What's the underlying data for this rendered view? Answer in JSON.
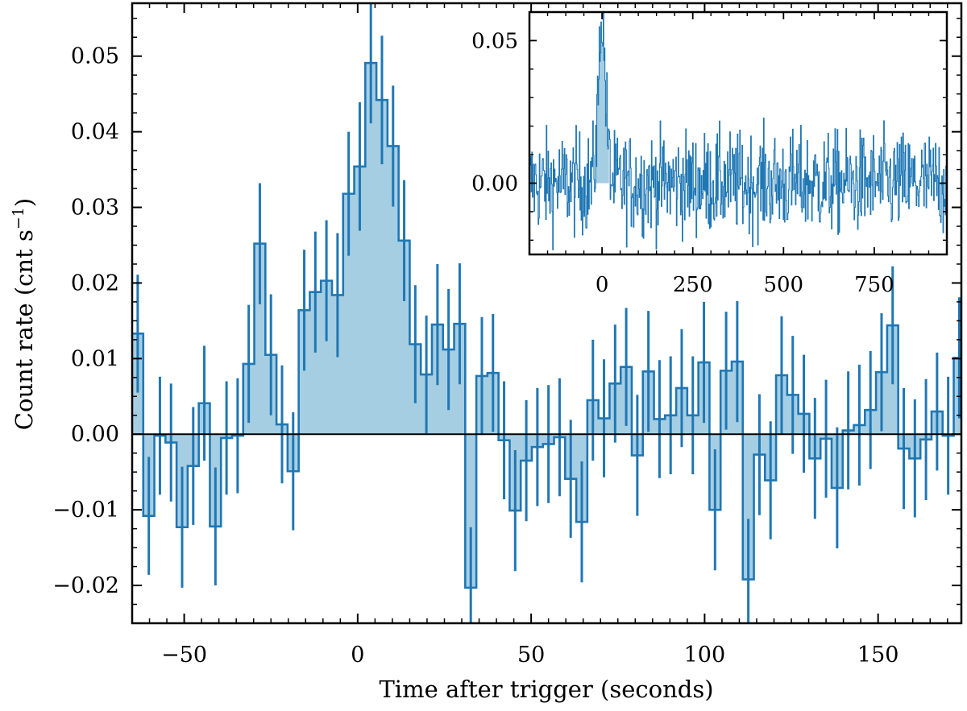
{
  "chart_data": [
    {
      "type": "step-histogram",
      "panel": "main",
      "xlabel": "Time after trigger (seconds)",
      "ylabel": "Count rate (cnt s",
      "ylabel_sup": "−1",
      "ylabel_close": ")",
      "xlim": [
        -65,
        174
      ],
      "ylim": [
        -0.025,
        0.057
      ],
      "xticks": [
        -50,
        0,
        50,
        100,
        150
      ],
      "xtick_labels": [
        "−50",
        "0",
        "50",
        "100",
        "150"
      ],
      "yticks": [
        -0.02,
        -0.01,
        0.0,
        0.01,
        0.02,
        0.03,
        0.04,
        0.05
      ],
      "ytick_labels": [
        "−0.02",
        "−0.01",
        "0.00",
        "0.01",
        "0.02",
        "0.03",
        "0.04",
        "0.05"
      ],
      "bin_start": -65,
      "bin_width": 3.2,
      "bin_edges_note": "",
      "values": [
        0.0133,
        -0.0108,
        -0.0002,
        -0.0011,
        -0.0123,
        -0.0042,
        0.0041,
        -0.0122,
        -0.0005,
        -0.0002,
        0.0093,
        0.0252,
        0.0105,
        0.0013,
        -0.0049,
        0.0164,
        0.0188,
        0.0203,
        0.0184,
        0.0318,
        0.0354,
        0.0491,
        0.0442,
        0.0381,
        0.0256,
        0.0119,
        0.0079,
        0.0145,
        0.0112,
        0.0146,
        -0.0203,
        0.0077,
        0.0081,
        -0.0008,
        -0.0101,
        -0.0035,
        -0.0017,
        -0.0013,
        -0.0004,
        -0.0059,
        -0.0116,
        0.0045,
        0.0021,
        0.0067,
        0.0089,
        -0.0028,
        0.0083,
        0.002,
        0.0025,
        0.0061,
        0.0025,
        0.0095,
        -0.01,
        0.0084,
        0.0096,
        -0.0192,
        -0.0027,
        -0.0061,
        0.0078,
        0.0052,
        0.0027,
        -0.0032,
        -0.0006,
        -0.0071,
        0.0005,
        0.0012,
        0.0032,
        0.0082,
        0.0144,
        -0.0019,
        -0.0032,
        -0.0007,
        0.003,
        -0.0002,
        0.0101
      ],
      "errors": [
        0.0078,
        0.0078,
        0.0078,
        0.0078,
        0.008,
        0.0078,
        0.0076,
        0.0078,
        0.0075,
        0.0076,
        0.0078,
        0.008,
        0.008,
        0.0078,
        0.0078,
        0.008,
        0.008,
        0.008,
        0.0082,
        0.0082,
        0.0085,
        0.008,
        0.0085,
        0.008,
        0.008,
        0.0078,
        0.0078,
        0.008,
        0.008,
        0.008,
        0.008,
        0.0078,
        0.0078,
        0.0078,
        0.008,
        0.008,
        0.0078,
        0.0078,
        0.0078,
        0.0078,
        0.008,
        0.008,
        0.0078,
        0.0078,
        0.0078,
        0.008,
        0.008,
        0.0078,
        0.0078,
        0.0078,
        0.0078,
        0.008,
        0.008,
        0.0078,
        0.008,
        0.008,
        0.008,
        0.0078,
        0.0078,
        0.0078,
        0.0078,
        0.008,
        0.0078,
        0.008,
        0.0078,
        0.008,
        0.0078,
        0.0078,
        0.0078,
        0.008,
        0.0078,
        0.008,
        0.0078,
        0.0078,
        0.008
      ],
      "baseline": 0,
      "colors": {
        "line": "#1f77b4",
        "fill": "#a6cee3",
        "zero_line": "#000000"
      }
    },
    {
      "type": "step-histogram",
      "panel": "inset",
      "xlim": [
        -200,
        950
      ],
      "ylim": [
        -0.025,
        0.06
      ],
      "xticks": [
        0,
        250,
        500,
        750
      ],
      "xtick_labels": [
        "0",
        "250",
        "500",
        "750"
      ],
      "yticks": [
        0.0,
        0.05
      ],
      "ytick_labels": [
        "0.00",
        "0.05"
      ],
      "bin_start": -200,
      "bin_width": 1.6,
      "noise_amplitude": 0.009,
      "peak": {
        "x": 0,
        "value": 0.055,
        "width": 10
      },
      "colors": {
        "line": "#1f77b4",
        "fill": "#a6cee3"
      }
    }
  ]
}
